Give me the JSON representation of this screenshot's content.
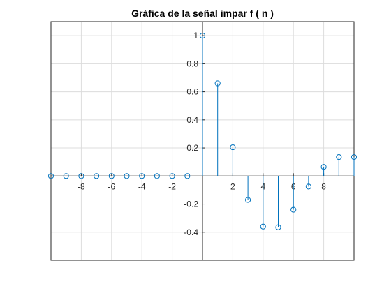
{
  "chart_data": {
    "type": "stem",
    "title": "Gráfica de la señal impar f ( n )",
    "xlabel": "",
    "ylabel": "",
    "xlim": [
      -10,
      10
    ],
    "ylim": [
      -0.6,
      1.1
    ],
    "grid": true,
    "axes_through_origin": true,
    "x_ticks": [
      -8,
      -6,
      -4,
      -2,
      2,
      4,
      6,
      8
    ],
    "x_tick_labels": [
      "-8",
      "-6",
      "-4",
      "-2",
      "2",
      "4",
      "6",
      "8"
    ],
    "y_ticks": [
      -0.4,
      -0.2,
      0.2,
      0.4,
      0.6,
      0.8,
      1
    ],
    "y_tick_labels": [
      "-0.4",
      "-0.2",
      "0.2",
      "0.4",
      "0.6",
      "0.8",
      "1"
    ],
    "series": [
      {
        "color": "#0072BD",
        "marker": "circle",
        "x": [
          -10,
          -9,
          -8,
          -7,
          -6,
          -5,
          -4,
          -3,
          -2,
          -1,
          0,
          1,
          2,
          3,
          4,
          5,
          6,
          7,
          8,
          9,
          10
        ],
        "values": [
          0,
          0,
          0,
          0,
          0,
          0,
          0,
          0,
          0,
          0,
          1.0,
          0.66,
          0.205,
          -0.17,
          -0.36,
          -0.365,
          -0.24,
          -0.075,
          0.065,
          0.135,
          0.135
        ]
      }
    ]
  },
  "colors": {
    "axes": "#262626",
    "grid": "#dcdcdc",
    "stem": "#0072BD"
  }
}
